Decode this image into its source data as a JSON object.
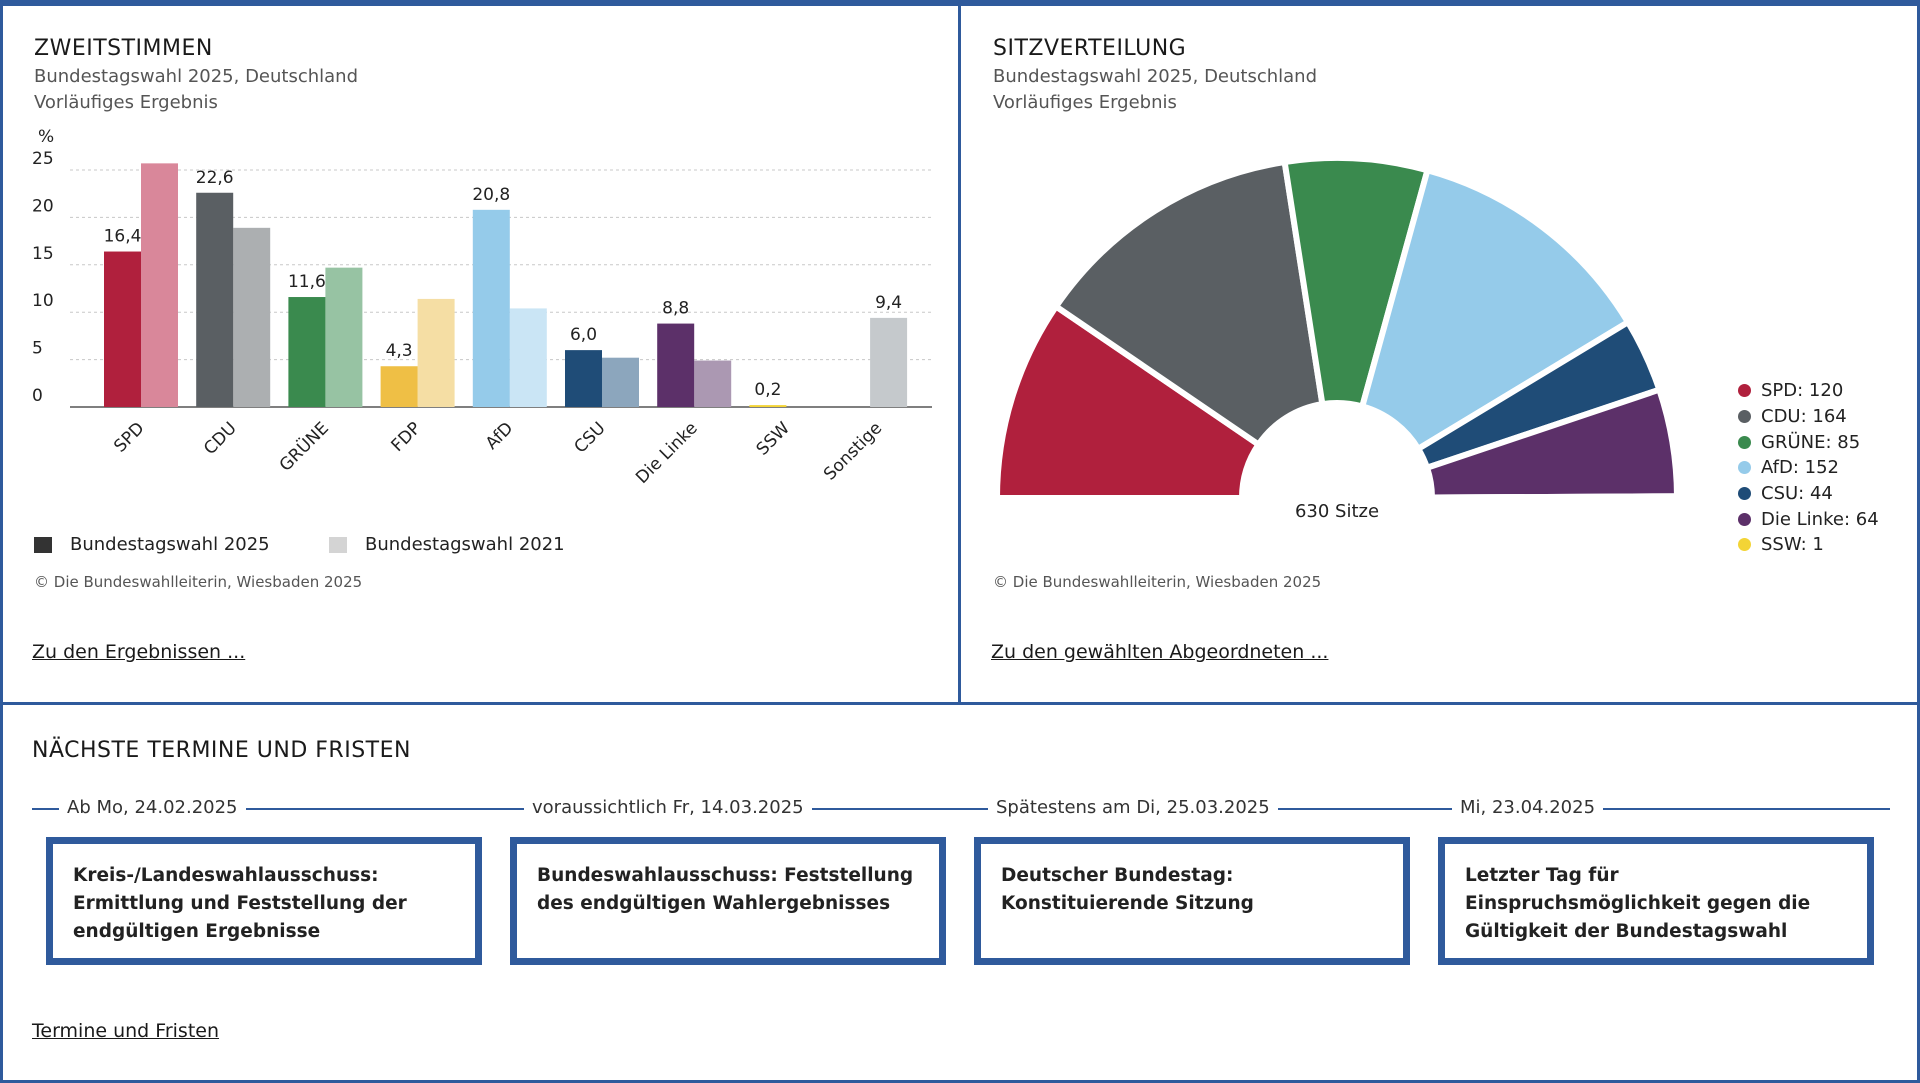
{
  "left_panel": {
    "title": "ZWEITSTIMMEN",
    "subtitle1": "Bundestagswahl 2025, Deutschland",
    "subtitle2": "Vorläufiges Ergebnis",
    "copyright": "© Die Bundeswahlleiterin, Wiesbaden 2025",
    "link": "Zu den Ergebnissen ..."
  },
  "right_panel": {
    "title": "SITZVERTEILUNG",
    "subtitle1": "Bundestagswahl 2025, Deutschland",
    "subtitle2": "Vorläufiges Ergebnis",
    "copyright": "© Die Bundeswahlleiterin, Wiesbaden 2025",
    "link": "Zu den gewählten Abgeordneten ..."
  },
  "chart_data": [
    {
      "type": "bar",
      "title": "ZWEITSTIMMEN",
      "ylabel": "%",
      "ylim": [
        0,
        25
      ],
      "yticks": [
        "0",
        "5",
        "10",
        "15",
        "20",
        "25"
      ],
      "categories": [
        "SPD",
        "CDU",
        "GRÜNE",
        "FDP",
        "AfD",
        "CSU",
        "Die Linke",
        "SSW",
        "Sonstige"
      ],
      "series": [
        {
          "name": "Bundestagswahl 2025",
          "values": [
            16.4,
            22.6,
            11.6,
            4.3,
            20.8,
            6.0,
            8.8,
            0.2,
            9.4
          ]
        },
        {
          "name": "Bundestagswahl 2021",
          "values": [
            25.7,
            18.9,
            14.7,
            11.4,
            10.4,
            5.2,
            4.9,
            null,
            null
          ]
        }
      ],
      "value_labels": [
        "16,4",
        "22,6",
        "11,6",
        "4,3",
        "20,8",
        "6,0",
        "8,8",
        "0,2",
        "9,4"
      ],
      "colors_2025": [
        "#b0203d",
        "#5a5f63",
        "#3a8a4e",
        "#efbf45",
        "#95cbea",
        "#1f4c77",
        "#5c3069",
        "#f3d436",
        "#c5c9cc"
      ],
      "colors_2021": [
        "#d9879a",
        "#acafb1",
        "#97c3a3",
        "#f5dea4",
        "#cae5f5",
        "#8ca6bd",
        "#ab98b2",
        "#f3e79d",
        "#c5c9cc"
      ]
    },
    {
      "type": "pie",
      "variant": "semicircle",
      "title": "SITZVERTEILUNG",
      "center_label": "630 Sitze",
      "total": 630,
      "slices": [
        {
          "name": "SPD",
          "value": 120,
          "color": "#b0203d",
          "label": "SPD: 120"
        },
        {
          "name": "CDU",
          "value": 164,
          "color": "#5a5f63",
          "label": "CDU: 164"
        },
        {
          "name": "GRÜNE",
          "value": 85,
          "color": "#3a8a4e",
          "label": "GRÜNE: 85"
        },
        {
          "name": "AfD",
          "value": 152,
          "color": "#95cbea",
          "label": "AfD: 152"
        },
        {
          "name": "CSU",
          "value": 44,
          "color": "#1f4c77",
          "label": "CSU: 44"
        },
        {
          "name": "Die Linke",
          "value": 64,
          "color": "#5c3069",
          "label": "Die Linke: 64"
        },
        {
          "name": "SSW",
          "value": 1,
          "color": "#f3d436",
          "label": "SSW: 1"
        }
      ]
    }
  ],
  "deadlines": {
    "title": "NÄCHSTE TERMINE UND FRISTEN",
    "items": [
      {
        "date": "Ab Mo, 24.02.2025",
        "text": "Kreis-/Landeswahlausschuss: Ermittlung und Feststellung der endgültigen Ergebnisse"
      },
      {
        "date": "voraussichtlich Fr, 14.03.2025",
        "text": "Bundeswahlausschuss: Feststellung des endgültigen Wahlergebnisses"
      },
      {
        "date": "Spätestens am Di, 25.03.2025",
        "text": "Deutscher Bundestag: Konstituierende Sitzung"
      },
      {
        "date": "Mi, 23.04.2025",
        "text": "Letzter Tag für Einspruchsmöglichkeit gegen die Gültigkeit der Bundestagswahl"
      }
    ],
    "link": "Termine und Fristen"
  }
}
